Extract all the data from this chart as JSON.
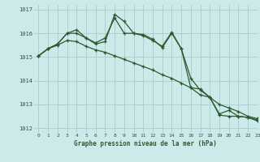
{
  "xlabel": "Graphe pression niveau de la mer (hPa)",
  "ylim": [
    1011.8,
    1017.2
  ],
  "xlim": [
    -0.5,
    23
  ],
  "yticks": [
    1012,
    1013,
    1014,
    1015,
    1016,
    1017
  ],
  "xticks": [
    0,
    1,
    2,
    3,
    4,
    5,
    6,
    7,
    8,
    9,
    10,
    11,
    12,
    13,
    14,
    15,
    16,
    17,
    18,
    19,
    20,
    21,
    22,
    23
  ],
  "bg_color": "#cceaea",
  "grid_color": "#aacccc",
  "line_color": "#2d5a2d",
  "series1": [
    1015.05,
    1015.35,
    1015.55,
    1016.0,
    1016.15,
    1015.8,
    1015.55,
    1015.65,
    1016.8,
    1016.5,
    1016.0,
    1015.9,
    1015.7,
    1015.45,
    1016.05,
    1015.35,
    1014.1,
    1013.6,
    1013.3,
    1012.55,
    1012.5,
    1012.5,
    1012.45,
    1012.3
  ],
  "series2": [
    1015.05,
    1015.35,
    1015.55,
    1016.0,
    1016.0,
    1015.8,
    1015.6,
    1015.8,
    1016.65,
    1016.0,
    1016.0,
    1015.95,
    1015.75,
    1015.4,
    1016.0,
    1015.35,
    1013.7,
    1013.65,
    1013.3,
    1012.6,
    1012.75,
    1012.5,
    1012.45,
    1012.35
  ],
  "series3": [
    1015.05,
    1015.35,
    1015.5,
    1015.7,
    1015.65,
    1015.45,
    1015.3,
    1015.2,
    1015.05,
    1014.9,
    1014.75,
    1014.6,
    1014.45,
    1014.25,
    1014.1,
    1013.9,
    1013.7,
    1013.4,
    1013.3,
    1013.0,
    1012.85,
    1012.7,
    1012.5,
    1012.4
  ]
}
